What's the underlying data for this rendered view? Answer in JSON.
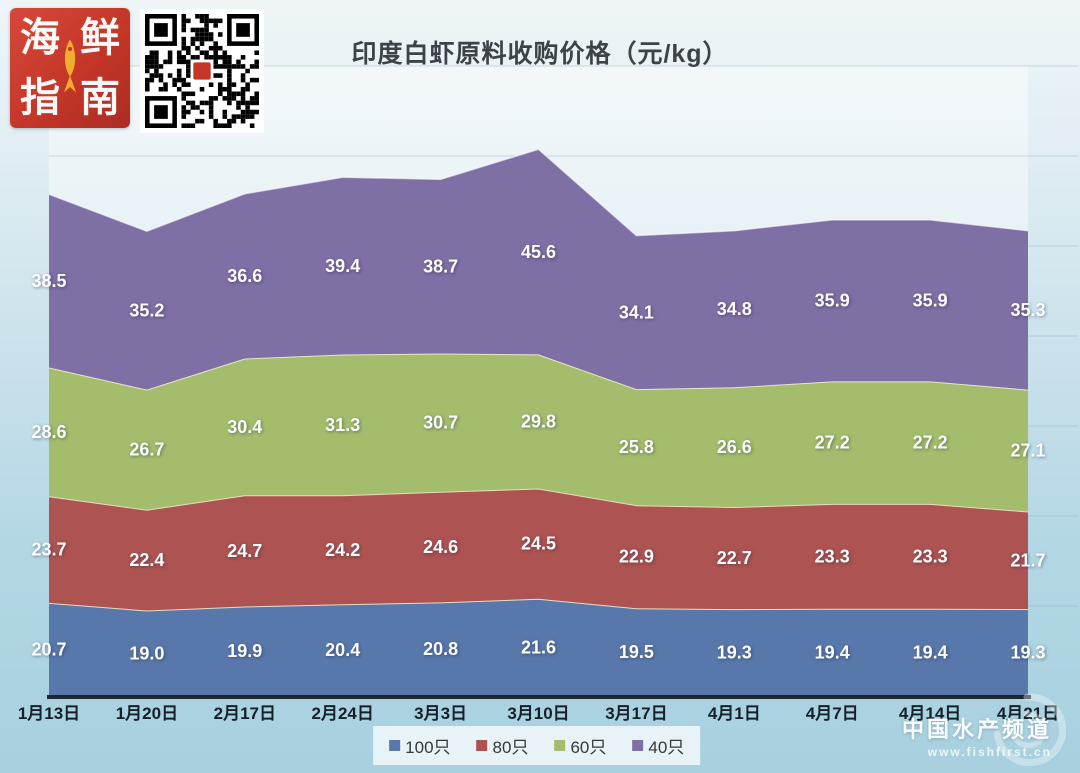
{
  "header": {
    "logo": {
      "characters": [
        "海",
        "鲜",
        "指",
        "南"
      ],
      "background_color": "#c43628",
      "fish_color": "#f0ad2e"
    },
    "qr_code": "wechat-qr-code"
  },
  "chart_data": {
    "type": "area",
    "stacked": true,
    "title": "印度白虾原料收购价格（元/kg）",
    "categories": [
      "1月13日",
      "1月20日",
      "2月17日",
      "2月24日",
      "3月3日",
      "3月10日",
      "3月17日",
      "4月1日",
      "4月7日",
      "4月14日",
      "4月21日"
    ],
    "series": [
      {
        "name": "100只",
        "color": "#5878ab",
        "values": [
          20.7,
          19.0,
          19.9,
          20.4,
          20.8,
          21.6,
          19.5,
          19.3,
          19.4,
          19.4,
          19.3
        ]
      },
      {
        "name": "80只",
        "color": "#ad5352",
        "values": [
          23.7,
          22.4,
          24.7,
          24.2,
          24.6,
          24.5,
          22.9,
          22.7,
          23.3,
          23.3,
          21.7
        ]
      },
      {
        "name": "60只",
        "color": "#a3bd6d",
        "values": [
          28.6,
          26.7,
          30.4,
          31.3,
          30.7,
          29.8,
          25.8,
          26.6,
          27.2,
          27.2,
          27.1
        ]
      },
      {
        "name": "40只",
        "color": "#7e6fa5",
        "values": [
          38.5,
          35.2,
          36.6,
          39.4,
          38.7,
          45.6,
          34.1,
          34.8,
          35.9,
          35.9,
          35.3
        ]
      }
    ],
    "ylim": [
      0,
      140
    ],
    "gridline_step": 20,
    "grid": true,
    "legend_position": "bottom",
    "data_label_color": "#ffffff",
    "axis_label_color": "#15202b",
    "value_label_format": "0.1"
  },
  "watermark": {
    "brand": "中国水产频道",
    "url": "www.fishfirst.cn"
  }
}
